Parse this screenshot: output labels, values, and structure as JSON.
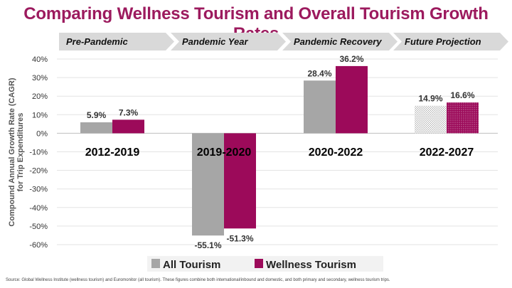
{
  "title": "Comparing Wellness Tourism and Overall Tourism Growth Rates",
  "source": "Source: Global Wellness Institute (wellness tourism) and Euromonitor (all tourism). These figures combine both international/inbound and domestic, and both primary and secondary, wellness tourism trips.",
  "chart_data": {
    "type": "bar",
    "title": "Comparing Wellness Tourism and Overall Tourism Growth Rates",
    "ylabel": "Compound Annual Growth Rate (CAGR) for Trip Expenditures",
    "ylim": [
      -60,
      40
    ],
    "yticks": [
      "-60%",
      "-50%",
      "-40%",
      "-30%",
      "-20%",
      "-10%",
      "0%",
      "10%",
      "20%",
      "30%",
      "40%"
    ],
    "yticks_values": [
      -60,
      -50,
      -40,
      -30,
      -20,
      -10,
      0,
      10,
      20,
      30,
      40
    ],
    "grid": true,
    "legend_position": "bottom",
    "phases": [
      "Pre-Pandemic",
      "Pandemic Year",
      "Pandemic Recovery",
      "Future Projection"
    ],
    "categories": [
      "2012-2019",
      "2019-2020",
      "2020-2022",
      "2022-2027"
    ],
    "series": [
      {
        "name": "All Tourism",
        "color": "#a6a6a6",
        "values": [
          5.9,
          -55.1,
          28.4,
          14.9
        ],
        "labels": [
          "5.9%",
          "-55.1%",
          "28.4%",
          "14.9%"
        ]
      },
      {
        "name": "Wellness Tourism",
        "color": "#9c0a5a",
        "values": [
          7.3,
          -51.3,
          36.2,
          16.6
        ],
        "labels": [
          "7.3%",
          "-51.3%",
          "36.2%",
          "16.6%"
        ]
      }
    ],
    "projected_category": "2022-2027"
  }
}
